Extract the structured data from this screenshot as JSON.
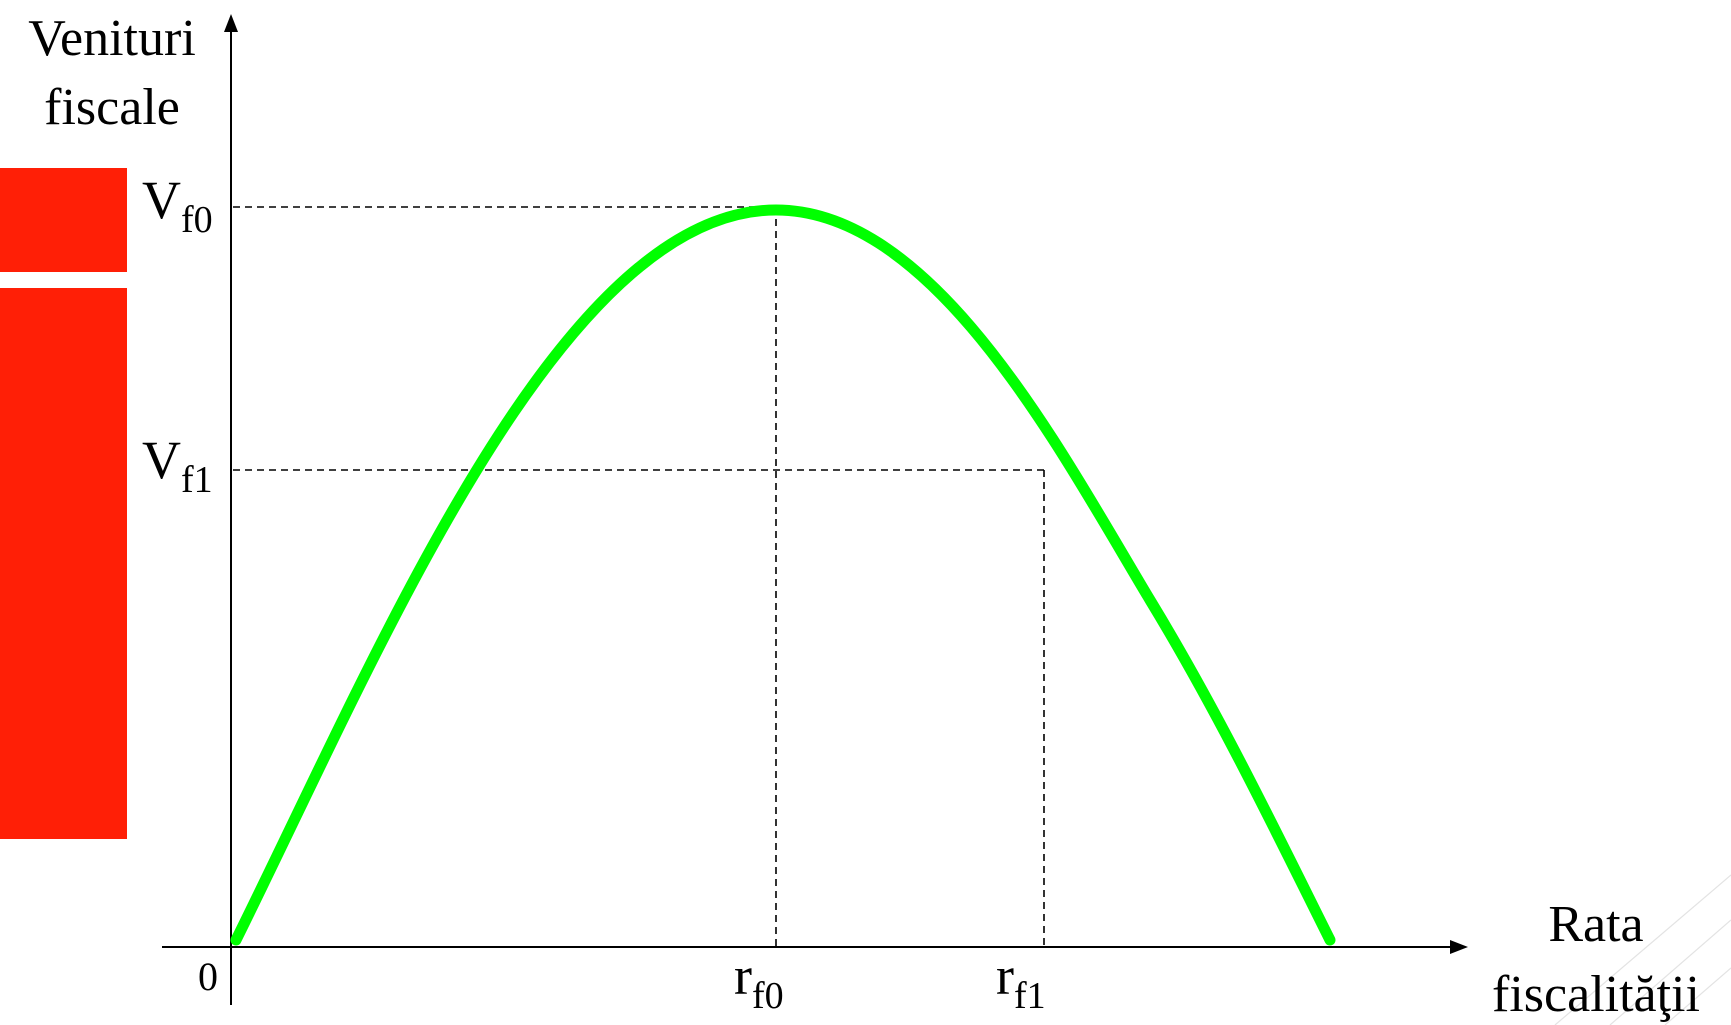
{
  "diagram": {
    "y_axis_label": [
      "Venituri",
      "fiscale"
    ],
    "x_axis_label": [
      "Rata",
      "fiscalităţii"
    ],
    "origin_label": "0",
    "y_markers": [
      {
        "main": "V",
        "sub": "f0"
      },
      {
        "main": "V",
        "sub": "f1"
      }
    ],
    "x_markers": [
      {
        "main": "r",
        "sub": "f0"
      },
      {
        "main": "r",
        "sub": "f1"
      }
    ],
    "colors": {
      "curve": "#00ff00",
      "side_bars": "#ff1f06",
      "axes": "#000000"
    }
  }
}
